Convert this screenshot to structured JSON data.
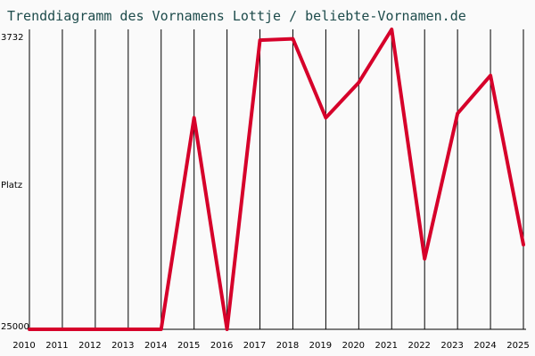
{
  "chart_data": {
    "type": "line",
    "title": "Trenddiagramm des Vornamens Lottje / beliebte-Vornamen.de",
    "ylabel": "Platz",
    "y_top_label": "3732",
    "y_bottom_label": "25000",
    "ylim": [
      25000,
      3732
    ],
    "y_inverted": true,
    "grid": "vertical",
    "line_color": "#d6002a",
    "x": [
      "2010",
      "2011",
      "2012",
      "2013",
      "2014",
      "2015",
      "2016",
      "2017",
      "2018",
      "2019",
      "2020",
      "2021",
      "2022",
      "2023",
      "2024",
      "2025"
    ],
    "series": [
      {
        "values": [
          25000,
          25000,
          25000,
          25000,
          25000,
          10000,
          25000,
          4500,
          4400,
          10000,
          7500,
          3732,
          20000,
          9700,
          7000,
          19000
        ]
      }
    ]
  }
}
